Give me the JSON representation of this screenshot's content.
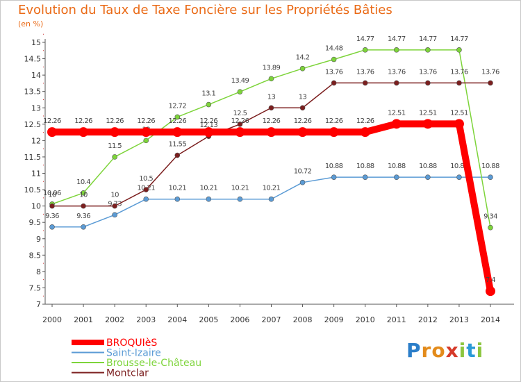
{
  "chart_data": {
    "type": "line",
    "title": "Evolution du Taux de Taxe Foncière sur les Propriétés Bâties",
    "ylabel": "(en %)",
    "xlabel": "",
    "x": [
      "2000",
      "2001",
      "2002",
      "2003",
      "2004",
      "2005",
      "2006",
      "2007",
      "2008",
      "2009",
      "2010",
      "2011",
      "2012",
      "2013",
      "2014"
    ],
    "ylim": [
      7,
      15
    ],
    "yticks": [
      "7",
      "7.5",
      "8",
      "8.5",
      "9",
      "9.5",
      "10",
      "10.5",
      "11",
      "11.5",
      "12",
      "12.5",
      "13",
      "13.5",
      "14",
      "14.5",
      "15"
    ],
    "grid": false,
    "legend_position": "bottom-left",
    "series": [
      {
        "name": "BROQUIèS",
        "color": "#ff0000",
        "values": [
          12.26,
          12.26,
          12.26,
          12.26,
          12.26,
          12.26,
          12.26,
          12.26,
          12.26,
          12.26,
          12.26,
          12.51,
          12.51,
          12.51,
          7.4
        ],
        "labels": [
          "12.26",
          "12.26",
          "12.26",
          "12.26",
          "12.26",
          "12.26",
          "12.26",
          "12.26",
          "12.26",
          "12.26",
          "12.26",
          "12.51",
          "12.51",
          "12.51",
          "7.4"
        ]
      },
      {
        "name": "Saint-Izaire",
        "color": "#5b9bd5",
        "values": [
          9.36,
          9.36,
          9.73,
          10.21,
          10.21,
          10.21,
          10.21,
          10.21,
          10.72,
          10.88,
          10.88,
          10.88,
          10.88,
          10.88,
          10.88
        ],
        "labels": [
          "9.36",
          "9.36",
          "9.73",
          "10.21",
          "10.21",
          "10.21",
          "10.21",
          "10.21",
          "10.72",
          "10.88",
          "10.88",
          "10.88",
          "10.88",
          "10.88",
          "10.88"
        ]
      },
      {
        "name": "Brousse-le-Château",
        "color": "#7dd43a",
        "values": [
          10.06,
          10.4,
          11.5,
          12,
          12.72,
          13.1,
          13.49,
          13.89,
          14.2,
          14.48,
          14.77,
          14.77,
          14.77,
          14.77,
          9.34
        ],
        "labels": [
          "10.06",
          "10.4",
          "11.5",
          "12",
          "12.72",
          "13.1",
          "13.49",
          "13.89",
          "14.2",
          "14.48",
          "14.77",
          "14.77",
          "14.77",
          "14.77",
          "9.34"
        ]
      },
      {
        "name": "Montclar",
        "color": "#7b1e1e",
        "values": [
          10,
          10,
          10,
          10.5,
          11.55,
          12.13,
          12.5,
          13,
          13,
          13.76,
          13.76,
          13.76,
          13.76,
          13.76,
          13.76
        ],
        "labels": [
          "10",
          "10",
          "10",
          "10.5",
          "11.55",
          "12.13",
          "12.5",
          "13",
          "13",
          "13.76",
          "13.76",
          "13.76",
          "13.76",
          "13.76",
          "13.76"
        ]
      }
    ]
  },
  "logo": {
    "letters": [
      "P",
      "r",
      "o",
      "x",
      "i",
      "t",
      "i"
    ]
  }
}
